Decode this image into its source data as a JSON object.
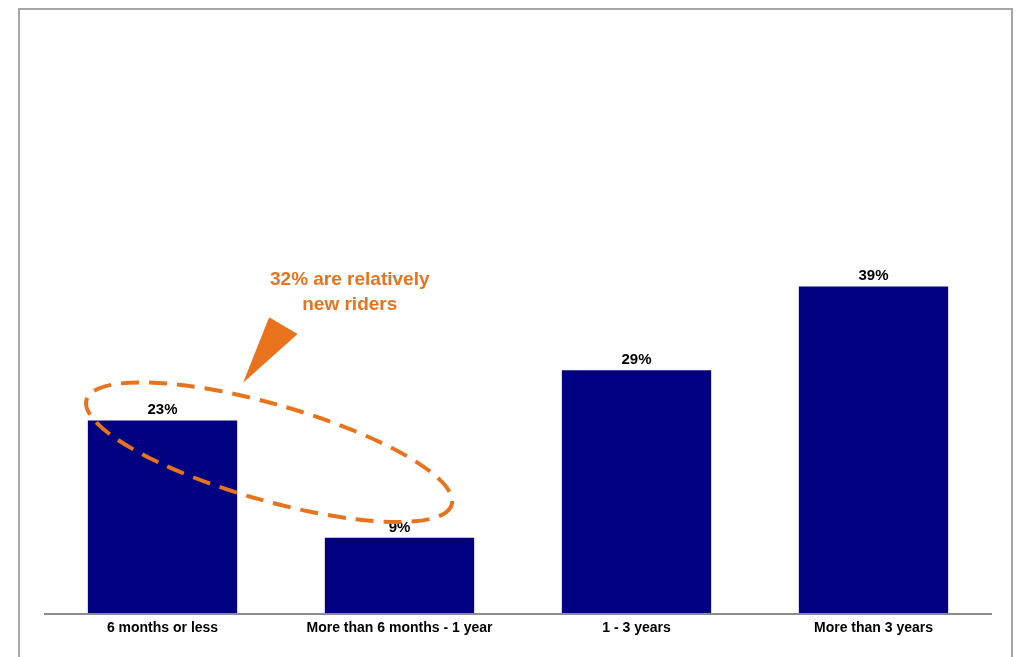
{
  "chart_data": {
    "type": "bar",
    "categories": [
      "6 months or less",
      "More than 6 months - 1 year",
      "1 - 3 years",
      "More than 3 years"
    ],
    "values": [
      23,
      9,
      29,
      39
    ],
    "color": "#000080",
    "value_labels": [
      "23%",
      "9%",
      "29%",
      "39%"
    ],
    "ylim": [
      0,
      72
    ],
    "tick_labels": "x",
    "annotations": [
      "32% are relatively\nnew riders"
    ]
  }
}
